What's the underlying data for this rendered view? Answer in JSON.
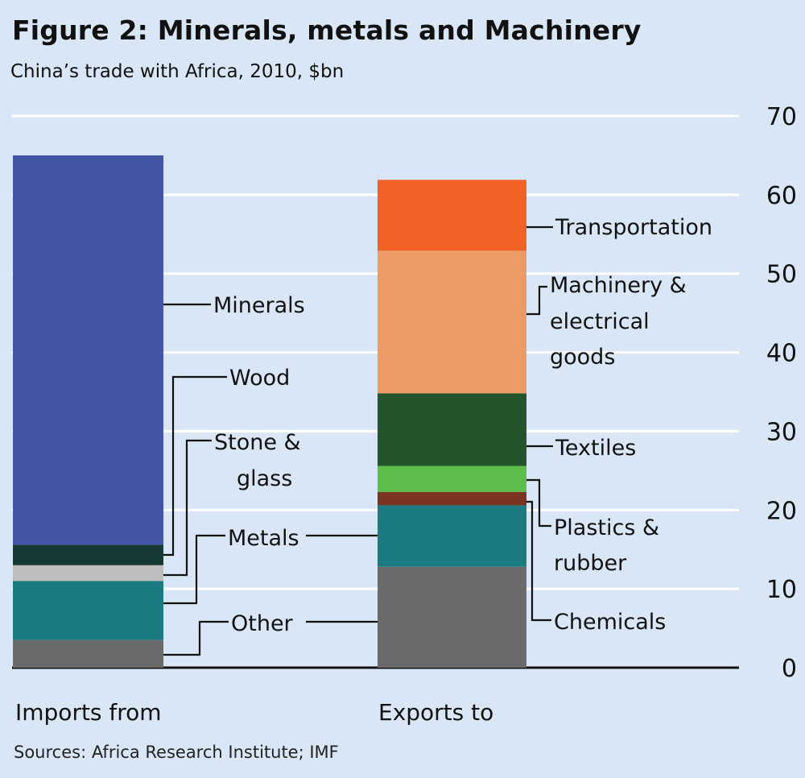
{
  "title": "Figure 2: Minerals, metals and Machinery",
  "subtitle": "China’s trade with Africa, 2010, $bn",
  "source": "Sources: Africa Research Institute; IMF",
  "chart_data": {
    "type": "bar",
    "stacked": true,
    "ylim": [
      0,
      70
    ],
    "y_ticks": [
      "0",
      "10",
      "20",
      "30",
      "40",
      "50",
      "60",
      "70"
    ],
    "grid": true,
    "categories": [
      "Imports from",
      "Exports to"
    ],
    "series_imports": [
      {
        "name": "Other",
        "value": 3.5,
        "color": "#6b6b6b"
      },
      {
        "name": "Metals",
        "value": 7.5,
        "color": "#1b7b80"
      },
      {
        "name": "Stone & glass",
        "value": 2.0,
        "color": "#bdbdbd"
      },
      {
        "name": "Wood",
        "value": 2.6,
        "color": "#173a37"
      },
      {
        "name": "Minerals",
        "value": 49.4,
        "color": "#4455a6"
      }
    ],
    "series_exports": [
      {
        "name": "Other",
        "value": 12.8,
        "color": "#6b6b6b"
      },
      {
        "name": "Metals",
        "value": 7.8,
        "color": "#1b7b80"
      },
      {
        "name": "Chemicals",
        "value": 1.7,
        "color": "#7a3421"
      },
      {
        "name": "Plastics & rubber",
        "value": 3.3,
        "color": "#5cbd4b"
      },
      {
        "name": "Textiles",
        "value": 9.2,
        "color": "#24542b"
      },
      {
        "name": "Machinery & electrical goods",
        "value": 18.1,
        "color": "#ea9b66"
      },
      {
        "name": "Transportation",
        "value": 9.0,
        "color": "#f26226"
      }
    ],
    "labels": {
      "minerals": "Minerals",
      "wood": "Wood",
      "stone_1": "Stone &",
      "stone_2": "glass",
      "metals": "Metals",
      "other": "Other",
      "transportation": "Transportation",
      "machinery_1": "Machinery &",
      "machinery_2": "electrical",
      "machinery_3": "goods",
      "textiles": "Textiles",
      "plastics_1": "Plastics &",
      "plastics_2": "rubber",
      "chemicals": "Chemicals"
    }
  }
}
